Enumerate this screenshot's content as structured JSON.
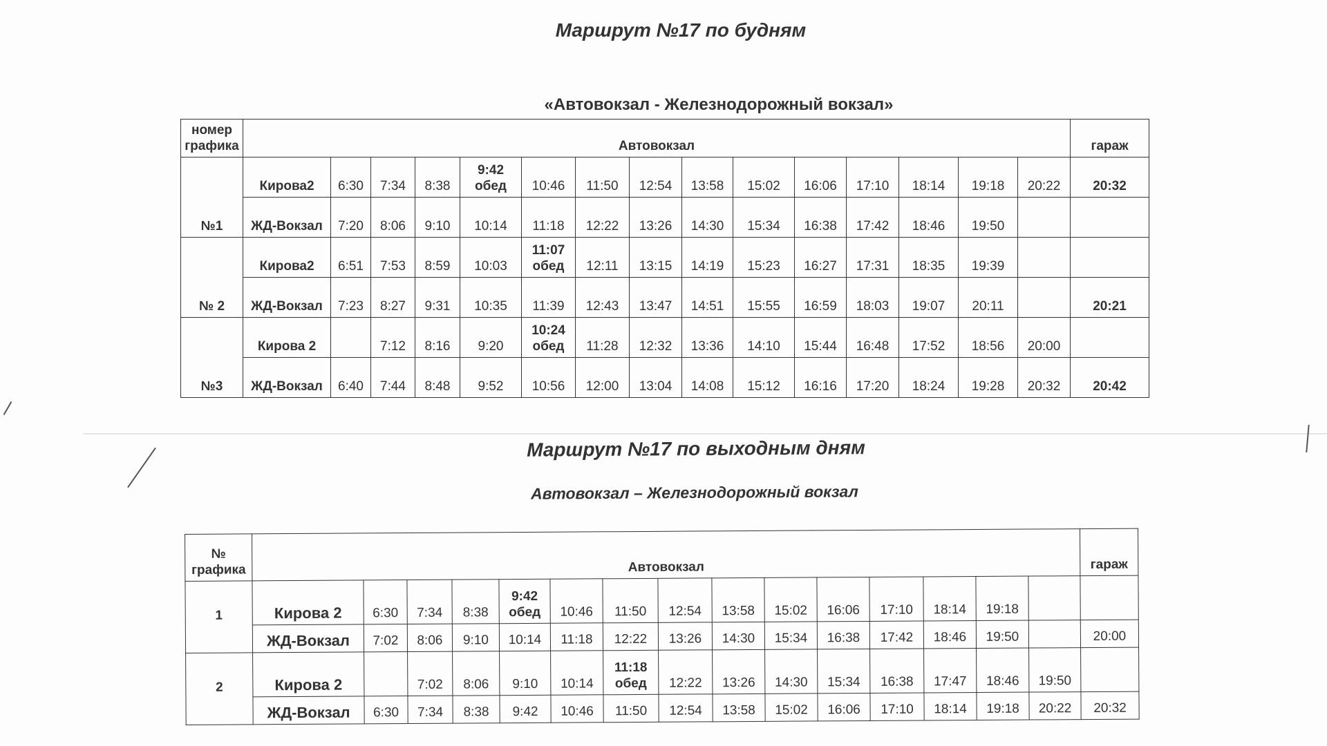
{
  "weekday": {
    "title": "Маршрут №17 по будням",
    "subtitle": "«Автовокзал - Железнодорожный вокзал»",
    "header": {
      "num": "номер графика",
      "main": "Автовокзал",
      "garage": "гараж"
    },
    "groups": [
      {
        "num": "№1",
        "rows": [
          {
            "stop": "Кирова2",
            "times": [
              "6:30",
              "7:34",
              "8:38",
              {
                "t": "9:42",
                "note": "обед"
              },
              "10:46",
              "11:50",
              "12:54",
              "13:58",
              "15:02",
              "16:06",
              "17:10",
              "18:14",
              "19:18",
              "20:22"
            ],
            "garage": "20:32"
          },
          {
            "stop": "ЖД-Вокзал",
            "times": [
              "7:20",
              "8:06",
              "9:10",
              "10:14",
              "11:18",
              "12:22",
              "13:26",
              "14:30",
              "15:34",
              "16:38",
              "17:42",
              "18:46",
              "19:50",
              ""
            ],
            "garage": ""
          }
        ]
      },
      {
        "num": "№ 2",
        "rows": [
          {
            "stop": "Кирова2",
            "times": [
              "6:51",
              "7:53",
              "8:59",
              "10:03",
              {
                "t": "11:07",
                "note": "обед"
              },
              "12:11",
              "13:15",
              "14:19",
              "15:23",
              "16:27",
              "17:31",
              "18:35",
              "19:39",
              ""
            ],
            "garage": ""
          },
          {
            "stop": "ЖД-Вокзал",
            "times": [
              "7:23",
              "8:27",
              "9:31",
              "10:35",
              "11:39",
              "12:43",
              "13:47",
              "14:51",
              "15:55",
              "16:59",
              "18:03",
              "19:07",
              "20:11",
              ""
            ],
            "garage": "20:21"
          }
        ]
      },
      {
        "num": "№3",
        "rows": [
          {
            "stop": "Кирова 2",
            "times": [
              "",
              "7:12",
              "8:16",
              "9:20",
              {
                "t": "10:24",
                "note": "обед"
              },
              "11:28",
              "12:32",
              "13:36",
              "14:10",
              "15:44",
              "16:48",
              "17:52",
              "18:56",
              "20:00"
            ],
            "garage": ""
          },
          {
            "stop": "ЖД-Вокзал",
            "times": [
              "6:40",
              "7:44",
              "8:48",
              "9:52",
              "10:56",
              "12:00",
              "13:04",
              "14:08",
              "15:12",
              "16:16",
              "17:20",
              "18:24",
              "19:28",
              "20:32"
            ],
            "garage": "20:42"
          }
        ]
      }
    ]
  },
  "weekend": {
    "title": "Маршрут №17 по выходным дням",
    "subtitle": "Автовокзал – Железнодорожный вокзал",
    "header": {
      "num": "№ графика",
      "main": "Автовокзал",
      "garage": "гараж"
    },
    "groups": [
      {
        "num": "1",
        "rows": [
          {
            "stop": "Кирова 2",
            "times": [
              "6:30",
              "7:34",
              "8:38",
              {
                "t": "9:42",
                "note": "обед"
              },
              "10:46",
              "11:50",
              "12:54",
              "13:58",
              "15:02",
              "16:06",
              "17:10",
              "18:14",
              "19:18",
              ""
            ],
            "garage": ""
          },
          {
            "stop": "ЖД-Вокзал",
            "times": [
              "7:02",
              "8:06",
              "9:10",
              "10:14",
              "11:18",
              "12:22",
              "13:26",
              "14:30",
              "15:34",
              "16:38",
              "17:42",
              "18:46",
              "19:50",
              ""
            ],
            "garage": "20:00"
          }
        ]
      },
      {
        "num": "2",
        "rows": [
          {
            "stop": "Кирова 2",
            "times": [
              "",
              "7:02",
              "8:06",
              "9:10",
              "10:14",
              {
                "t": "11:18",
                "note": "обед"
              },
              "12:22",
              "13:26",
              "14:30",
              "15:34",
              "16:38",
              "17:47",
              "18:46",
              "19:50"
            ],
            "garage": ""
          },
          {
            "stop": "ЖД-Вокзал",
            "times": [
              "6:30",
              "7:34",
              "8:38",
              "9:42",
              "10:46",
              "11:50",
              "12:54",
              "13:58",
              "15:02",
              "16:06",
              "17:10",
              "18:14",
              "19:18",
              "20:22"
            ],
            "garage": "20:32"
          }
        ]
      }
    ]
  }
}
